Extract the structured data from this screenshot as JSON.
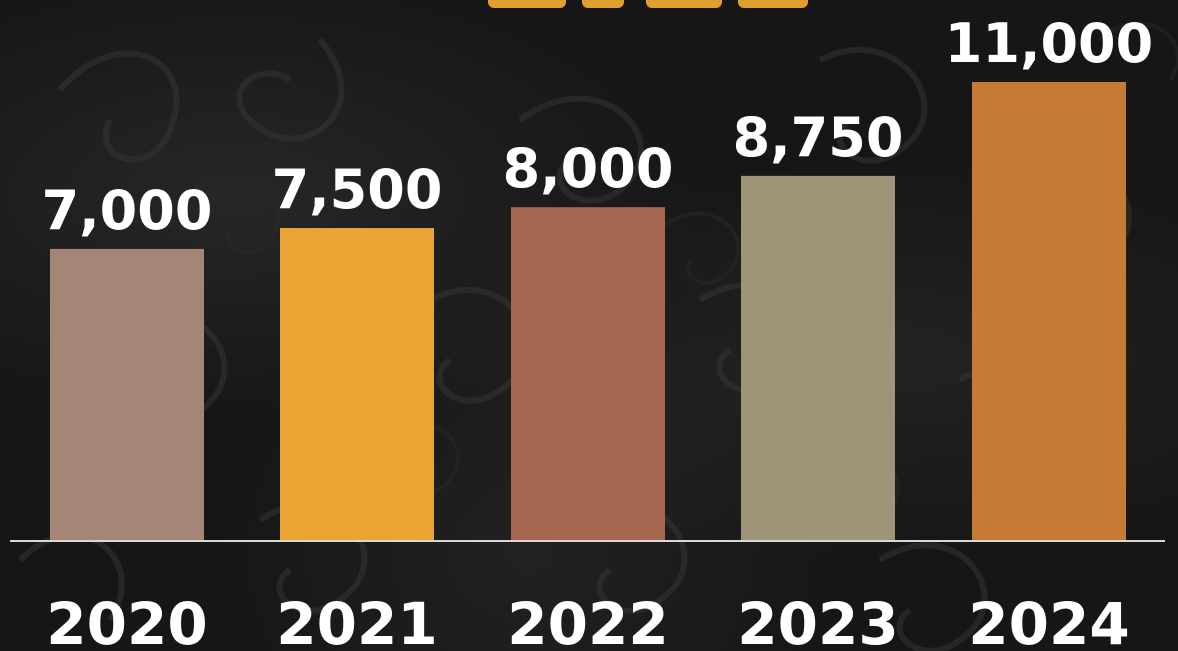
{
  "chart_data": {
    "type": "bar",
    "categories": [
      "2020",
      "2021",
      "2022",
      "2023",
      "2024"
    ],
    "values": [
      7000,
      7500,
      8000,
      8750,
      11000
    ],
    "value_labels": [
      "7,000",
      "7,500",
      "8,000",
      "8,750",
      "11,000"
    ],
    "colors": [
      "#a58676",
      "#eba334",
      "#a66651",
      "#9e9478",
      "#c67b34"
    ],
    "ylim": [
      0,
      11000
    ],
    "grid": false,
    "legend": "none",
    "axis_color": "#d8d8d8",
    "title_color": "#e0a030"
  }
}
